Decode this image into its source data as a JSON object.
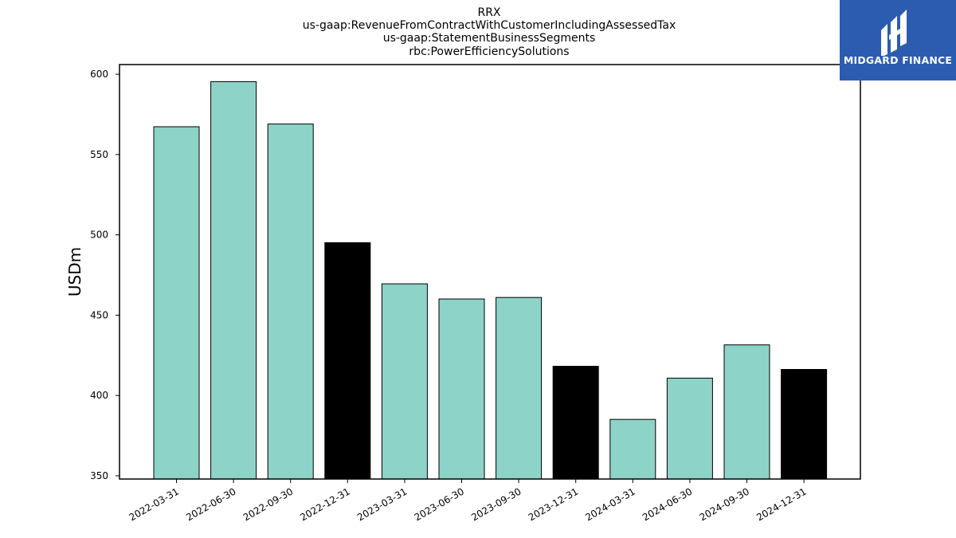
{
  "chart_data": {
    "type": "bar",
    "title_lines": [
      "RRX",
      "us-gaap:RevenueFromContractWithCustomerIncludingAssessedTax",
      "us-gaap:StatementBusinessSegments",
      "rbc:PowerEfficiencySolutions"
    ],
    "ylabel": "USDm",
    "ylim": [
      348,
      606
    ],
    "yticks": [
      350,
      400,
      450,
      500,
      550,
      600
    ],
    "categories": [
      "2022-03-31",
      "2022-06-30",
      "2022-09-30",
      "2022-12-31",
      "2023-03-31",
      "2023-06-30",
      "2023-09-30",
      "2023-12-31",
      "2024-03-31",
      "2024-06-30",
      "2024-09-30",
      "2024-12-31"
    ],
    "values": [
      567.3,
      595.4,
      569.0,
      495.1,
      469.5,
      460.1,
      461.0,
      418.2,
      385.1,
      410.8,
      431.5,
      416.2
    ],
    "bar_colors": [
      "#8dd3c7",
      "#8dd3c7",
      "#8dd3c7",
      "#000000",
      "#8dd3c7",
      "#8dd3c7",
      "#8dd3c7",
      "#000000",
      "#8dd3c7",
      "#8dd3c7",
      "#8dd3c7",
      "#000000"
    ],
    "grid": false,
    "legend": "none"
  },
  "logo": {
    "text": "MIDGARD FINANCE",
    "background": "#2b5cb0"
  }
}
